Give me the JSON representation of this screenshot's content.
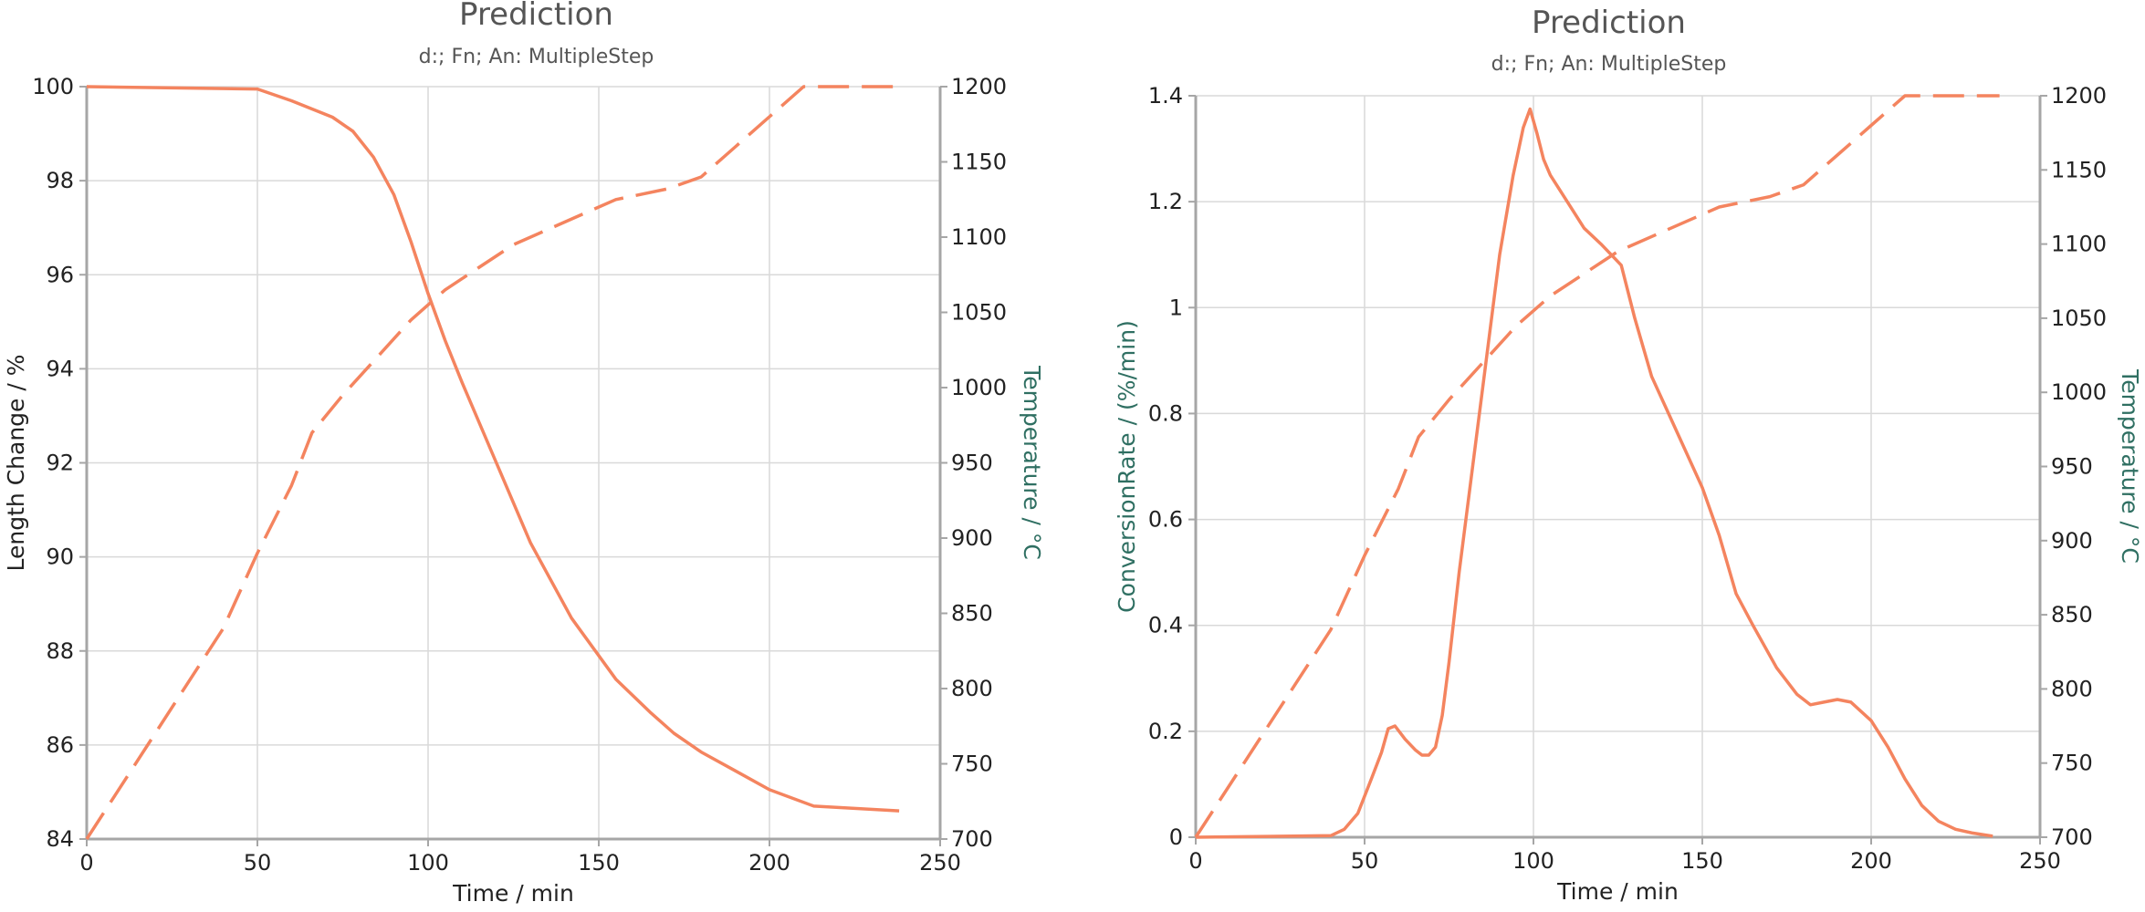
{
  "colors": {
    "series": "#f4845f",
    "grid": "#d9d9d9",
    "axis": "#a6a6a6",
    "label_left": "#222222",
    "label_right_teal": "#2f6f62"
  },
  "chart_data": [
    {
      "type": "line",
      "title": "Prediction",
      "subtitle": "d:; Fn; An: MultipleStep",
      "xlabel": "Time / min",
      "ylabel": "Length Change / %",
      "y2label": "Temperature / °C",
      "xlim": [
        0,
        250
      ],
      "ylim": [
        84,
        100
      ],
      "y2lim": [
        700,
        1200
      ],
      "xticks": [
        0,
        50,
        100,
        150,
        200,
        250
      ],
      "yticks": [
        84,
        86,
        88,
        90,
        92,
        94,
        96,
        98,
        100
      ],
      "y2ticks": [
        700,
        750,
        800,
        850,
        900,
        950,
        1000,
        1050,
        1100,
        1150,
        1200
      ],
      "grid": true,
      "series": [
        {
          "axis": "y",
          "style": "solid",
          "x": [
            0,
            50,
            60,
            72,
            78,
            84,
            90,
            95,
            100,
            105,
            110,
            120,
            130,
            142,
            155,
            165,
            172,
            180,
            190,
            200,
            213,
            238
          ],
          "y": [
            100,
            99.95,
            99.7,
            99.35,
            99.05,
            98.5,
            97.7,
            96.7,
            95.6,
            94.6,
            93.7,
            92.0,
            90.3,
            88.7,
            87.4,
            86.7,
            86.25,
            85.85,
            85.45,
            85.05,
            84.7,
            84.6
          ]
        },
        {
          "axis": "y2",
          "style": "dashed",
          "x": [
            0,
            20,
            40,
            50,
            60,
            66,
            75,
            85,
            95,
            105,
            115,
            125,
            140,
            155,
            170,
            180,
            190,
            200,
            210,
            238
          ],
          "y": [
            700,
            770,
            840,
            890,
            935,
            970,
            995,
            1020,
            1045,
            1065,
            1080,
            1095,
            1110,
            1125,
            1132,
            1140,
            1160,
            1180,
            1200,
            1200
          ]
        }
      ]
    },
    {
      "type": "line",
      "title": "Prediction",
      "subtitle": "d:; Fn; An: MultipleStep",
      "xlabel": "Time / min",
      "ylabel": "ConversionRate / (%/min)",
      "y2label": "Temperature / °C",
      "xlim": [
        0,
        250
      ],
      "ylim": [
        0,
        1.4
      ],
      "y2lim": [
        700,
        1200
      ],
      "xticks": [
        0,
        50,
        100,
        150,
        200,
        250
      ],
      "yticks": [
        0,
        0.2,
        0.4,
        0.6,
        0.8,
        1,
        1.2,
        1.4
      ],
      "y2ticks": [
        700,
        750,
        800,
        850,
        900,
        950,
        1000,
        1050,
        1100,
        1150,
        1200
      ],
      "grid": true,
      "series": [
        {
          "axis": "y",
          "style": "solid",
          "x": [
            0,
            40,
            44,
            48,
            52,
            55,
            57,
            59,
            62,
            65,
            67,
            69,
            71,
            73,
            75,
            78,
            82,
            86,
            90,
            94,
            97,
            99,
            101,
            103,
            105,
            110,
            115,
            120,
            126,
            130,
            135,
            140,
            150,
            155,
            160,
            165,
            172,
            178,
            182,
            186,
            190,
            194,
            200,
            205,
            210,
            215,
            220,
            225,
            230,
            236
          ],
          "y": [
            0,
            0.003,
            0.015,
            0.045,
            0.11,
            0.16,
            0.205,
            0.21,
            0.185,
            0.165,
            0.155,
            0.155,
            0.17,
            0.23,
            0.33,
            0.5,
            0.7,
            0.9,
            1.1,
            1.25,
            1.34,
            1.375,
            1.33,
            1.28,
            1.25,
            1.2,
            1.15,
            1.12,
            1.08,
            0.98,
            0.87,
            0.8,
            0.66,
            0.57,
            0.46,
            0.4,
            0.32,
            0.27,
            0.25,
            0.255,
            0.26,
            0.255,
            0.22,
            0.17,
            0.11,
            0.06,
            0.03,
            0.015,
            0.008,
            0.002
          ]
        },
        {
          "axis": "y2",
          "style": "dashed",
          "x": [
            0,
            20,
            40,
            50,
            60,
            66,
            75,
            85,
            95,
            105,
            115,
            125,
            140,
            155,
            170,
            180,
            190,
            200,
            210,
            238
          ],
          "y": [
            700,
            770,
            840,
            890,
            935,
            970,
            995,
            1020,
            1045,
            1065,
            1080,
            1095,
            1110,
            1125,
            1132,
            1140,
            1160,
            1180,
            1200,
            1200
          ]
        }
      ]
    }
  ]
}
